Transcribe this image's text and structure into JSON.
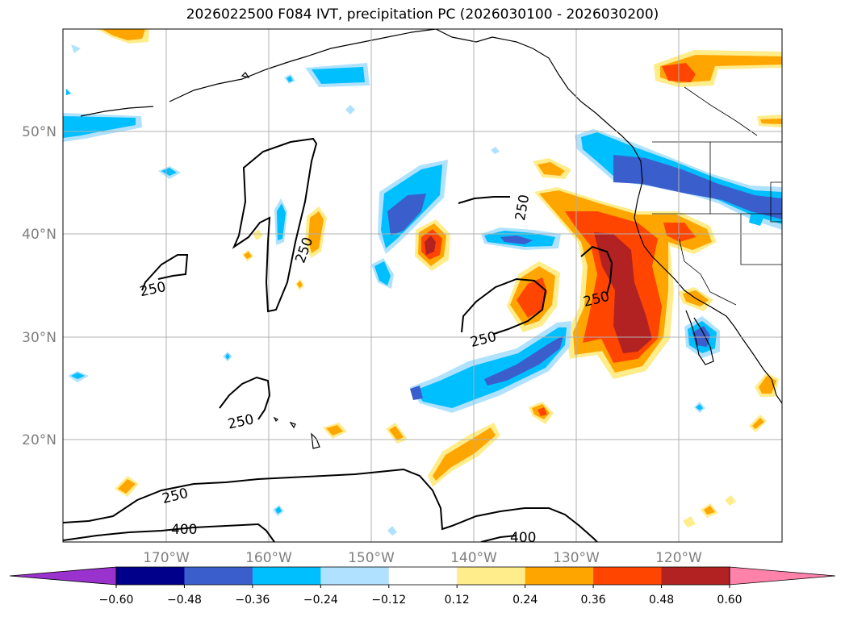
{
  "title": "2026022500 F084 IVT, precipitation PC (2026030100 - 2026030200)",
  "lat_labels": [
    "50°N",
    "40°N",
    "30°N",
    "20°N"
  ],
  "lon_labels": [
    "170°W",
    "160°W",
    "150°W",
    "140°W",
    "130°W",
    "120°W"
  ],
  "contour_labels": [
    "250",
    "250",
    "250",
    "250",
    "250",
    "250",
    "250",
    "400",
    "400"
  ],
  "colorbar": {
    "tick_labels": [
      "−0.60",
      "−0.48",
      "−0.36",
      "−0.24",
      "−0.12",
      "0.12",
      "0.24",
      "0.36",
      "0.48",
      "0.60"
    ],
    "colors": [
      "#9a32cd",
      "#00008b",
      "#3a5fcd",
      "#00bfff",
      "#b0e2ff",
      "#ffffff",
      "#ffec8b",
      "#ffa500",
      "#ff4500",
      "#b22222",
      "#ff82ab"
    ]
  },
  "chart_data": {
    "type": "map",
    "field_filled": "precipitation PC",
    "field_contour": "IVT",
    "contour_levels": [
      250,
      400
    ],
    "lat_range": [
      10,
      60
    ],
    "lon_range": [
      -180,
      -110
    ],
    "color_levels": [
      -0.6,
      -0.48,
      -0.36,
      -0.24,
      -0.12,
      0.12,
      0.24,
      0.36,
      0.48,
      0.6
    ],
    "extend": "both"
  }
}
